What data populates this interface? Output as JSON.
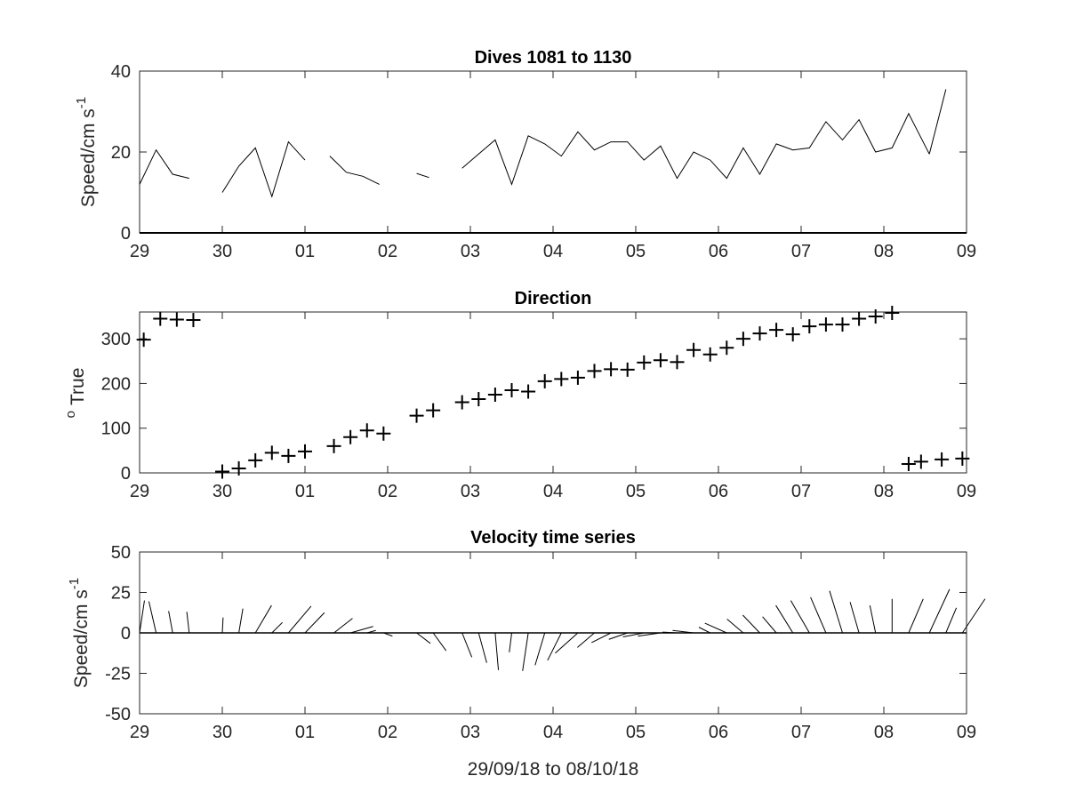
{
  "chart_data": [
    {
      "type": "line",
      "title": "Dives 1081 to 1130",
      "ylabel": "Speed/cm s",
      "ylabel_superscript": "-1",
      "xlabel": "",
      "xlim": [
        0,
        10
      ],
      "ylim": [
        0,
        40
      ],
      "x_ticks": [
        0,
        1,
        2,
        3,
        4,
        5,
        6,
        7,
        8,
        9,
        10
      ],
      "x_tick_labels": [
        "29",
        "30",
        "01",
        "02",
        "03",
        "04",
        "05",
        "06",
        "07",
        "08",
        "09"
      ],
      "y_ticks": [
        0,
        20,
        40
      ],
      "y_tick_labels": [
        "0",
        "20",
        "40"
      ],
      "series": [
        {
          "segments": [
            {
              "x": [
                0.0,
                0.2,
                0.4,
                0.6
              ],
              "y": [
                12,
                20.5,
                14.5,
                13.5
              ]
            },
            {
              "x": [
                1.0,
                1.2,
                1.4,
                1.6,
                1.8,
                2.0
              ],
              "y": [
                10,
                16.5,
                21,
                9,
                22.5,
                18
              ]
            },
            {
              "x": [
                2.3,
                2.5,
                2.7,
                2.9
              ],
              "y": [
                19,
                15,
                14,
                12
              ]
            },
            {
              "x": [
                3.35,
                3.5
              ],
              "y": [
                14.7,
                13.7
              ]
            },
            {
              "x": [
                3.9,
                4.1,
                4.3,
                4.5,
                4.7,
                4.9,
                5.1,
                5.3,
                5.5,
                5.7,
                5.9,
                6.1,
                6.3,
                6.5,
                6.7,
                6.9,
                7.1,
                7.3,
                7.5,
                7.7,
                7.9,
                8.1,
                8.3,
                8.5,
                8.7,
                8.9,
                9.1,
                9.3,
                9.55
              ],
              "y": [
                16,
                19.5,
                23,
                12,
                24,
                22,
                19,
                25,
                20.5,
                22.5,
                22.5,
                18,
                21.5,
                13.5,
                20,
                18,
                13.5,
                21,
                14.5,
                22,
                20.5,
                21,
                27.5,
                23,
                28,
                20,
                21,
                29.5,
                19.5
              ]
            },
            {
              "x": [
                9.55,
                9.75
              ],
              "y": [
                19.5,
                35.5
              ]
            }
          ]
        }
      ]
    },
    {
      "type": "scatter",
      "title": "Direction",
      "ylabel": "True",
      "ylabel_prefix_superscript": "o",
      "xlabel": "",
      "xlim": [
        0,
        10
      ],
      "ylim": [
        0,
        360
      ],
      "x_ticks": [
        0,
        1,
        2,
        3,
        4,
        5,
        6,
        7,
        8,
        9,
        10
      ],
      "x_tick_labels": [
        "29",
        "30",
        "01",
        "02",
        "03",
        "04",
        "05",
        "06",
        "07",
        "08",
        "09"
      ],
      "y_ticks": [
        0,
        100,
        200,
        300
      ],
      "y_tick_labels": [
        "0",
        "100",
        "200",
        "300"
      ],
      "marker": "+",
      "x": [
        0.05,
        0.25,
        0.45,
        0.65,
        1.0,
        1.2,
        1.4,
        1.6,
        1.8,
        2.0,
        2.35,
        2.55,
        2.75,
        2.95,
        3.35,
        3.55,
        3.9,
        4.1,
        4.3,
        4.5,
        4.7,
        4.9,
        5.1,
        5.3,
        5.5,
        5.7,
        5.9,
        6.1,
        6.3,
        6.5,
        6.7,
        6.9,
        7.1,
        7.3,
        7.5,
        7.7,
        7.9,
        8.1,
        8.3,
        8.5,
        8.7,
        8.9,
        9.1,
        9.3,
        9.45,
        9.7,
        9.95
      ],
      "y": [
        298,
        345,
        343,
        342,
        3,
        10,
        28,
        45,
        38,
        48,
        60,
        80,
        95,
        88,
        128,
        140,
        158,
        165,
        175,
        185,
        182,
        205,
        210,
        213,
        228,
        232,
        231,
        247,
        252,
        248,
        275,
        265,
        280,
        300,
        312,
        320,
        310,
        328,
        332,
        332,
        345,
        350,
        358,
        20,
        25,
        30,
        32
      ],
      "x_override_note": ""
    },
    {
      "type": "quiver",
      "title": "Velocity time series",
      "ylabel": "Speed/cm s",
      "ylabel_superscript": "-1",
      "xlabel": "29/09/18 to 08/10/18",
      "xlim": [
        0,
        10
      ],
      "ylim": [
        -50,
        50
      ],
      "x_ticks": [
        0,
        1,
        2,
        3,
        4,
        5,
        6,
        7,
        8,
        9,
        10
      ],
      "x_tick_labels": [
        "29",
        "30",
        "01",
        "02",
        "03",
        "04",
        "05",
        "06",
        "07",
        "08",
        "09"
      ],
      "y_ticks": [
        -50,
        -25,
        0,
        25,
        50
      ],
      "y_tick_labels": [
        "-50",
        "-25",
        "0",
        "25",
        "50"
      ],
      "vectors": [
        {
          "x": 0.0,
          "u": 3.0,
          "v": 20.0
        },
        {
          "x": 0.2,
          "u": -4.5,
          "v": 19.5
        },
        {
          "x": 0.4,
          "u": -2.5,
          "v": 13.5
        },
        {
          "x": 0.6,
          "u": -1.5,
          "v": 13.0
        },
        {
          "x": 1.0,
          "u": 0.5,
          "v": 9.5
        },
        {
          "x": 1.2,
          "u": 2.5,
          "v": 15.0
        },
        {
          "x": 1.4,
          "u": 10.0,
          "v": 17.0
        },
        {
          "x": 1.6,
          "u": 6.5,
          "v": 6.5
        },
        {
          "x": 1.8,
          "u": 14.0,
          "v": 16.5
        },
        {
          "x": 2.0,
          "u": 12.0,
          "v": 12.5
        },
        {
          "x": 2.35,
          "u": 11.5,
          "v": 9.0
        },
        {
          "x": 2.55,
          "u": 14.0,
          "v": 4.0
        },
        {
          "x": 2.75,
          "u": 5.5,
          "v": 1.5
        },
        {
          "x": 2.95,
          "u": 5.5,
          "v": -2.0
        },
        {
          "x": 3.35,
          "u": 8.5,
          "v": -6.5
        },
        {
          "x": 3.55,
          "u": 8.0,
          "v": -11.0
        },
        {
          "x": 3.9,
          "u": 6.0,
          "v": -15.0
        },
        {
          "x": 4.1,
          "u": 5.0,
          "v": -18.5
        },
        {
          "x": 4.3,
          "u": 2.0,
          "v": -23.0
        },
        {
          "x": 4.5,
          "u": -1.5,
          "v": -12.0
        },
        {
          "x": 4.7,
          "u": -3.5,
          "v": -23.5
        },
        {
          "x": 4.9,
          "u": -6.0,
          "v": -20.0
        },
        {
          "x": 5.1,
          "u": -8.5,
          "v": -17.0
        },
        {
          "x": 5.3,
          "u": -14.0,
          "v": -12.5
        },
        {
          "x": 5.5,
          "u": -10.5,
          "v": -9.0
        },
        {
          "x": 5.7,
          "u": -12.0,
          "v": -6.0
        },
        {
          "x": 5.9,
          "u": -11.5,
          "v": -4.0
        },
        {
          "x": 6.1,
          "u": -13.0,
          "v": -2.5
        },
        {
          "x": 6.3,
          "u": -14.0,
          "v": -2.0
        },
        {
          "x": 6.5,
          "u": -9.0,
          "v": 0.5
        },
        {
          "x": 6.7,
          "u": -13.0,
          "v": 1.5
        },
        {
          "x": 6.9,
          "u": -7.0,
          "v": 3.5
        },
        {
          "x": 7.1,
          "u": -13.5,
          "v": 6.0
        },
        {
          "x": 7.3,
          "u": -10.0,
          "v": 8.5
        },
        {
          "x": 7.5,
          "u": -10.5,
          "v": 11.0
        },
        {
          "x": 7.7,
          "u": -8.5,
          "v": 10.0
        },
        {
          "x": 7.9,
          "u": -10.5,
          "v": 17.0
        },
        {
          "x": 8.1,
          "u": -11.5,
          "v": 20.0
        },
        {
          "x": 8.3,
          "u": -9.5,
          "v": 22.0
        },
        {
          "x": 8.5,
          "u": -8.0,
          "v": 26.0
        },
        {
          "x": 8.7,
          "u": -5.5,
          "v": 19.0
        },
        {
          "x": 8.9,
          "u": -3.5,
          "v": 17.0
        },
        {
          "x": 9.1,
          "u": 0.0,
          "v": 21.0
        },
        {
          "x": 9.3,
          "u": 9.0,
          "v": 21.0
        },
        {
          "x": 9.55,
          "u": 12.5,
          "v": 27.0
        },
        {
          "x": 9.75,
          "u": 6.5,
          "v": 15.5
        },
        {
          "x": 9.95,
          "u": 14.0,
          "v": 21.0
        }
      ]
    }
  ]
}
